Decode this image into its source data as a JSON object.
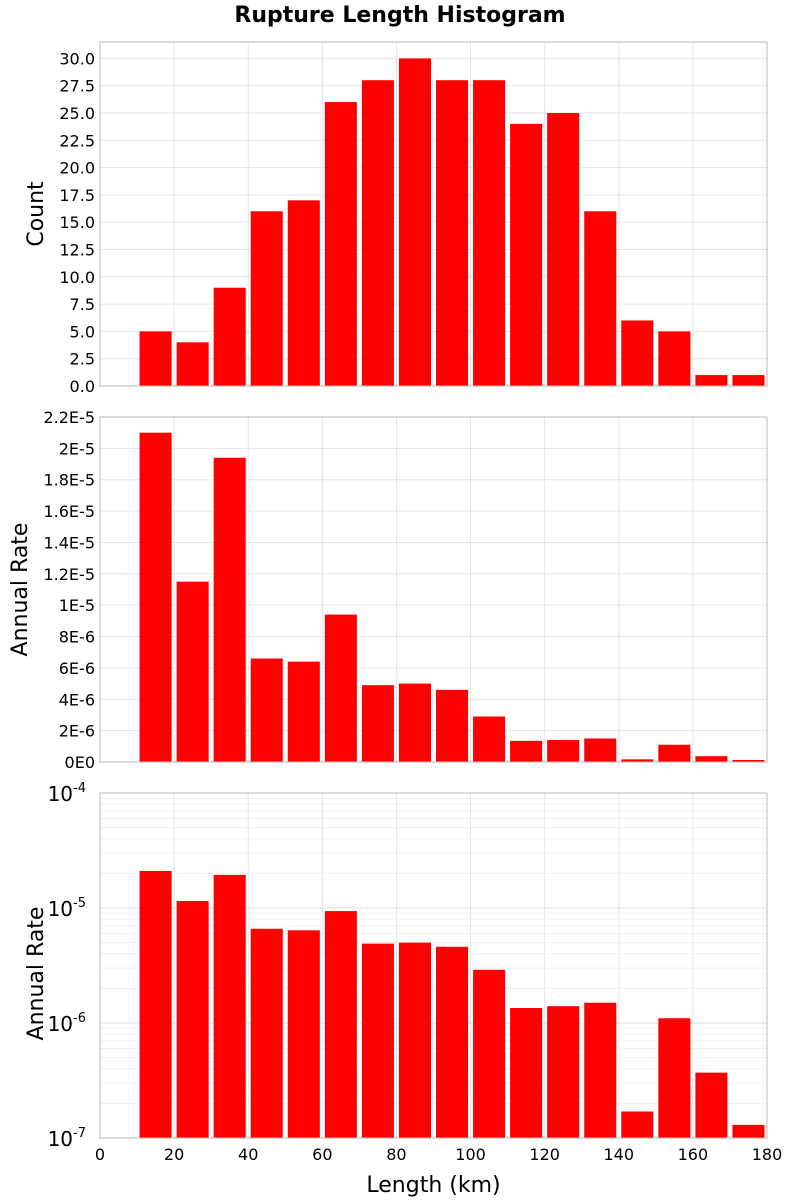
{
  "title": "Rupture Length Histogram",
  "colors": {
    "bar": "#ff0000",
    "grid": "#e6e6e6",
    "frame": "#b8b8b8"
  },
  "chart_data": [
    {
      "type": "bar",
      "panel": "count",
      "bin_width": 10,
      "x": [
        15,
        25,
        35,
        45,
        55,
        65,
        75,
        85,
        95,
        105,
        115,
        125,
        135,
        145,
        155,
        165,
        175
      ],
      "values": [
        5,
        4,
        9,
        16,
        17,
        26,
        28,
        30,
        28,
        28,
        24,
        25,
        16,
        6,
        5,
        1,
        1
      ],
      "ylabel": "Count",
      "ylim": [
        0,
        31.5
      ],
      "xlim": [
        0,
        180
      ],
      "yticks": [
        0,
        2.5,
        5,
        7.5,
        10,
        12.5,
        15,
        17.5,
        20,
        22.5,
        25,
        27.5,
        30
      ],
      "ytick_labels": [
        "0.0",
        "2.5",
        "5.0",
        "7.5",
        "10.0",
        "12.5",
        "15.0",
        "17.5",
        "20.0",
        "22.5",
        "25.0",
        "27.5",
        "30.0"
      ],
      "grid": true
    },
    {
      "type": "bar",
      "panel": "rate-linear",
      "bin_width": 10,
      "x": [
        15,
        25,
        35,
        45,
        55,
        65,
        75,
        85,
        95,
        105,
        115,
        125,
        135,
        145,
        155,
        165,
        175
      ],
      "values": [
        2.1e-05,
        1.15e-05,
        1.94e-05,
        6.6e-06,
        6.4e-06,
        9.4e-06,
        4.9e-06,
        5e-06,
        4.6e-06,
        2.9e-06,
        1.35e-06,
        1.4e-06,
        1.5e-06,
        1.7e-07,
        1.1e-06,
        3.7e-07,
        1.3e-07
      ],
      "ylabel": "Annual Rate",
      "ylim": [
        0,
        2.2e-05
      ],
      "xlim": [
        0,
        180
      ],
      "yticks": [
        0,
        2e-06,
        4e-06,
        6e-06,
        8e-06,
        1e-05,
        1.2e-05,
        1.4e-05,
        1.6e-05,
        1.8e-05,
        2e-05,
        2.2e-05
      ],
      "ytick_labels": [
        "0E0",
        "2E-6",
        "4E-6",
        "6E-6",
        "8E-6",
        "1E-5",
        "1.2E-5",
        "1.4E-5",
        "1.6E-5",
        "1.8E-5",
        "2E-5",
        "2.2E-5"
      ],
      "grid": true
    },
    {
      "type": "bar",
      "panel": "rate-log",
      "scale": "log",
      "bin_width": 10,
      "x": [
        15,
        25,
        35,
        45,
        55,
        65,
        75,
        85,
        95,
        105,
        115,
        125,
        135,
        145,
        155,
        165,
        175
      ],
      "values": [
        2.1e-05,
        1.15e-05,
        1.94e-05,
        6.6e-06,
        6.4e-06,
        9.4e-06,
        4.9e-06,
        5e-06,
        4.6e-06,
        2.9e-06,
        1.35e-06,
        1.4e-06,
        1.5e-06,
        1.7e-07,
        1.1e-06,
        3.7e-07,
        1.3e-07
      ],
      "ylabel": "Annual Rate",
      "xlabel": "Length (km)",
      "ylim": [
        1e-07,
        0.0001
      ],
      "xlim": [
        0,
        180
      ],
      "yticks": [
        1e-07,
        1e-06,
        1e-05,
        0.0001
      ],
      "ytick_base": [
        "10",
        "10",
        "10",
        "10"
      ],
      "ytick_exp": [
        "-7",
        "-6",
        "-5",
        "-4"
      ],
      "xticks": [
        0,
        20,
        40,
        60,
        80,
        100,
        120,
        140,
        160,
        180
      ],
      "xtick_labels": [
        "0",
        "20",
        "40",
        "60",
        "80",
        "100",
        "120",
        "140",
        "160",
        "180"
      ],
      "grid": true
    }
  ]
}
